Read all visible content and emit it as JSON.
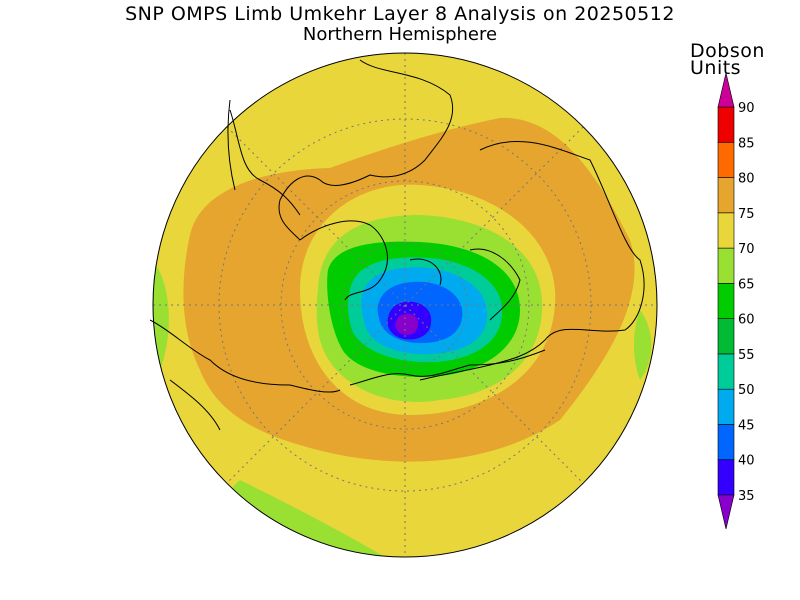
{
  "title": "SNP OMPS Limb Umkehr Layer 8 Analysis on 20250512",
  "subtitle": "Northern Hemisphere",
  "units_line1": "Dobson",
  "units_line2": "Units",
  "colorbar": {
    "min": 35,
    "max": 90,
    "levels": [
      {
        "value": "35",
        "color": "#8800cc"
      },
      {
        "value": "40",
        "color": "#3300ff"
      },
      {
        "value": "45",
        "color": "#0066ff"
      },
      {
        "value": "50",
        "color": "#00aaee"
      },
      {
        "value": "55",
        "color": "#00cc99"
      },
      {
        "value": "60",
        "color": "#00bb33"
      },
      {
        "value": "65",
        "color": "#00cc00"
      },
      {
        "value": "70",
        "color": "#99e033"
      },
      {
        "value": "75",
        "color": "#e8d63a"
      },
      {
        "value": "80",
        "color": "#e6a52e"
      },
      {
        "value": "85",
        "color": "#ff6a00"
      },
      {
        "value": "90",
        "color": "#ee0000"
      }
    ],
    "overflow_color": "#cc0099"
  },
  "map_colors": {
    "background": "#e8d63a",
    "high_band": "#e6a52e",
    "mid_green": "#99e033",
    "green": "#00cc00",
    "teal": "#00cc99",
    "cyan": "#00aaee",
    "blue": "#0066ff",
    "deep_blue": "#3300ff",
    "violet": "#8800cc",
    "coastline": "#000000",
    "grid": "#777777"
  },
  "icons": {
    "colorbar_top_arrow": "triangle-up-icon",
    "colorbar_bottom_arrow": "triangle-down-icon"
  }
}
